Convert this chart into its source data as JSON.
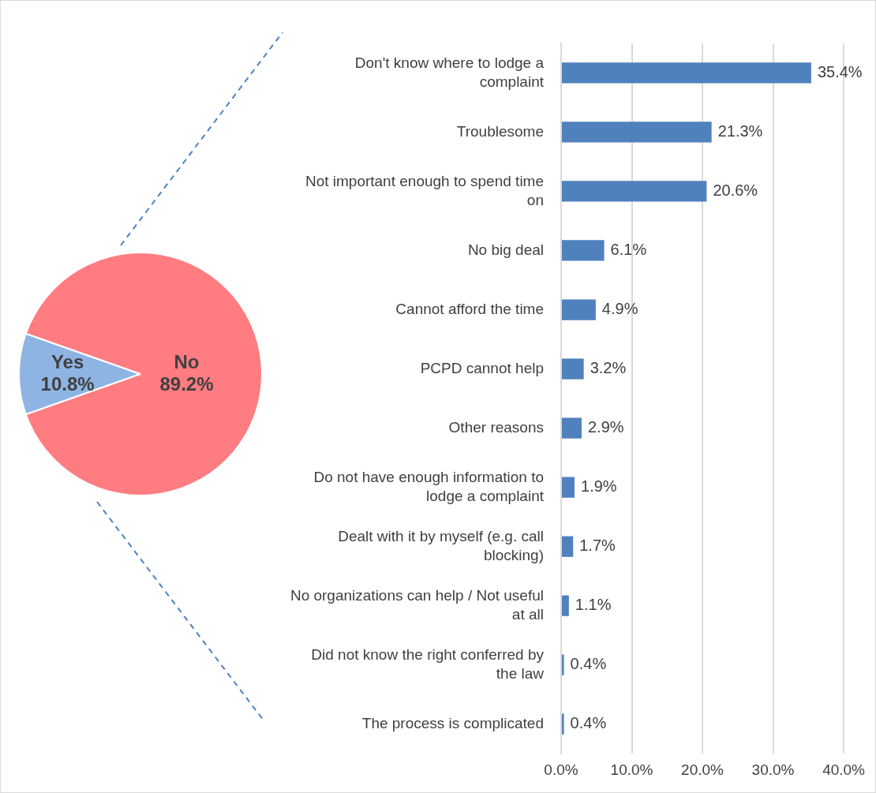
{
  "chart_data": [
    {
      "type": "pie",
      "categories": [
        "Yes",
        "No"
      ],
      "values": [
        10.8,
        89.2
      ],
      "colors": [
        "#8eb4e3",
        "#ff7c80"
      ],
      "value_labels": [
        "10.8%",
        "89.2%"
      ],
      "legend": false
    },
    {
      "type": "bar",
      "orientation": "horizontal",
      "categories": [
        "Don't know where to lodge a complaint",
        "Troublesome",
        "Not important enough to spend time on",
        "No big deal",
        "Cannot afford the time",
        "PCPD cannot help",
        "Other reasons",
        "Do not have enough information to lodge a complaint",
        "Dealt with it by myself (e.g. call blocking)",
        "No organizations can help / Not useful at all",
        "Did not know the right conferred by the law",
        "The process is complicated"
      ],
      "values": [
        35.4,
        21.3,
        20.6,
        6.1,
        4.9,
        3.2,
        2.9,
        1.9,
        1.7,
        1.1,
        0.4,
        0.4
      ],
      "value_labels": [
        "35.4%",
        "21.3%",
        "20.6%",
        "6.1%",
        "4.9%",
        "3.2%",
        "2.9%",
        "1.9%",
        "1.7%",
        "1.1%",
        "0.4%",
        "0.4%"
      ],
      "color": "#4f81bd",
      "xlim": [
        0,
        40
      ],
      "xticks": [
        {
          "value": 0,
          "label": "0.0%"
        },
        {
          "value": 10,
          "label": "10.0%"
        },
        {
          "value": 20,
          "label": "20.0%"
        },
        {
          "value": 30,
          "label": "30.0%"
        },
        {
          "value": 40,
          "label": "40.0%"
        }
      ],
      "grid": "x",
      "legend": false
    }
  ]
}
